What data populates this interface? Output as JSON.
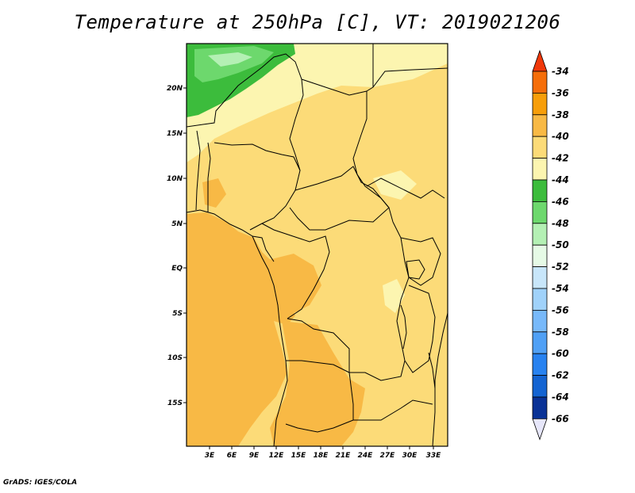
{
  "title": "Temperature at 250hPa [C], VT: 2019021206",
  "credit": "GrADS: IGES/COLA",
  "map": {
    "lat_labels": [
      "20N",
      "15N",
      "10N",
      "5N",
      "EQ",
      "5S",
      "10S",
      "15S"
    ],
    "lon_labels": [
      "3E",
      "6E",
      "9E",
      "12E",
      "15E",
      "18E",
      "21E",
      "24E",
      "27E",
      "30E",
      "33E"
    ]
  },
  "legend": {
    "labels": [
      "-34",
      "-36",
      "-38",
      "-40",
      "-42",
      "-44",
      "-46",
      "-48",
      "-50",
      "-52",
      "-54",
      "-56",
      "-58",
      "-60",
      "-62",
      "-64",
      "-66"
    ],
    "colors": [
      "#f0380a",
      "#f56e0a",
      "#f79e0a",
      "#f8b945",
      "#fcdb78",
      "#fcf5b0",
      "#3cbc3c",
      "#6dd86d",
      "#b4f0b4",
      "#e6fae6",
      "#c8e6fa",
      "#a0d2fa",
      "#78b9fa",
      "#50a0f5",
      "#2882f0",
      "#1464d2",
      "#0a3296",
      "#0a0a6e"
    ]
  }
}
